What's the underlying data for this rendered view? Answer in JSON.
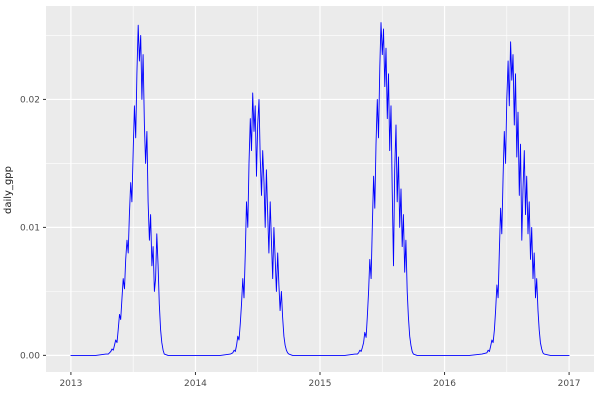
{
  "colors": {
    "figure_bg": "#FFFFFF",
    "panel_bg": "#EBEBEB",
    "grid": "#FFFFFF",
    "tick_mark": "#333333",
    "tick_text": "#4D4D4D",
    "axis_title": "#1A1A1A"
  },
  "chart_data": {
    "type": "line",
    "title": "",
    "xlabel": "",
    "ylabel": "daily_gpp",
    "xlim": [
      2012.8,
      2017.2
    ],
    "ylim": [
      -0.0013,
      0.0273
    ],
    "grid": "on",
    "legend": "none",
    "x_ticks": [
      {
        "value": 2013,
        "label": "2013"
      },
      {
        "value": 2014,
        "label": "2014"
      },
      {
        "value": 2015,
        "label": "2015"
      },
      {
        "value": 2016,
        "label": "2016"
      },
      {
        "value": 2017,
        "label": "2017"
      }
    ],
    "y_ticks": [
      {
        "value": 0.0,
        "label": "0.00"
      },
      {
        "value": 0.01,
        "label": "0.01"
      },
      {
        "value": 0.02,
        "label": "0.02"
      }
    ],
    "x_minor": [
      2013.5,
      2014.5,
      2015.5,
      2016.5
    ],
    "y_minor": [
      0.005,
      0.015,
      0.025
    ],
    "series": [
      {
        "name": "daily_gpp",
        "color": "#0000FF",
        "points": [
          [
            2013.0,
            0
          ],
          [
            2013.1,
            0
          ],
          [
            2013.2,
            0
          ],
          [
            2013.28,
            0.0001
          ],
          [
            2013.3,
            0.0001
          ],
          [
            2013.31,
            0.0002
          ],
          [
            2013.32,
            0.0003
          ],
          [
            2013.33,
            0.0005
          ],
          [
            2013.34,
            0.0004
          ],
          [
            2013.35,
            0.0008
          ],
          [
            2013.36,
            0.0012
          ],
          [
            2013.37,
            0.001
          ],
          [
            2013.38,
            0.002
          ],
          [
            2013.39,
            0.0032
          ],
          [
            2013.4,
            0.0028
          ],
          [
            2013.41,
            0.0045
          ],
          [
            2013.42,
            0.006
          ],
          [
            2013.43,
            0.0052
          ],
          [
            2013.44,
            0.0075
          ],
          [
            2013.45,
            0.009
          ],
          [
            2013.46,
            0.008
          ],
          [
            2013.47,
            0.011
          ],
          [
            2013.48,
            0.0135
          ],
          [
            2013.49,
            0.012
          ],
          [
            2013.5,
            0.016
          ],
          [
            2013.51,
            0.0195
          ],
          [
            2013.52,
            0.017
          ],
          [
            2013.53,
            0.022
          ],
          [
            2013.54,
            0.0258
          ],
          [
            2013.55,
            0.023
          ],
          [
            2013.56,
            0.025
          ],
          [
            2013.57,
            0.02
          ],
          [
            2013.58,
            0.0235
          ],
          [
            2013.59,
            0.018
          ],
          [
            2013.6,
            0.015
          ],
          [
            2013.61,
            0.0175
          ],
          [
            2013.62,
            0.012
          ],
          [
            2013.63,
            0.009
          ],
          [
            2013.64,
            0.011
          ],
          [
            2013.65,
            0.007
          ],
          [
            2013.66,
            0.0085
          ],
          [
            2013.67,
            0.005
          ],
          [
            2013.68,
            0.006
          ],
          [
            2013.69,
            0.0095
          ],
          [
            2013.7,
            0.007
          ],
          [
            2013.71,
            0.004
          ],
          [
            2013.72,
            0.002
          ],
          [
            2013.73,
            0.001
          ],
          [
            2013.74,
            0.0004
          ],
          [
            2013.75,
            0.0001
          ],
          [
            2013.78,
            0
          ],
          [
            2013.85,
            0
          ],
          [
            2013.92,
            0
          ],
          [
            2013.99,
            0
          ],
          [
            2014.0,
            0
          ],
          [
            2014.1,
            0
          ],
          [
            2014.2,
            0
          ],
          [
            2014.28,
            0.0001
          ],
          [
            2014.3,
            0.0002
          ],
          [
            2014.31,
            0.0004
          ],
          [
            2014.32,
            0.0003
          ],
          [
            2014.33,
            0.0008
          ],
          [
            2014.34,
            0.0015
          ],
          [
            2014.35,
            0.0012
          ],
          [
            2014.36,
            0.0025
          ],
          [
            2014.37,
            0.004
          ],
          [
            2014.38,
            0.006
          ],
          [
            2014.39,
            0.0045
          ],
          [
            2014.4,
            0.008
          ],
          [
            2014.41,
            0.012
          ],
          [
            2014.42,
            0.01
          ],
          [
            2014.43,
            0.015
          ],
          [
            2014.44,
            0.0185
          ],
          [
            2014.45,
            0.016
          ],
          [
            2014.46,
            0.0205
          ],
          [
            2014.47,
            0.0175
          ],
          [
            2014.48,
            0.0195
          ],
          [
            2014.49,
            0.014
          ],
          [
            2014.5,
            0.018
          ],
          [
            2014.51,
            0.02
          ],
          [
            2014.52,
            0.0155
          ],
          [
            2014.53,
            0.0125
          ],
          [
            2014.54,
            0.016
          ],
          [
            2014.55,
            0.0135
          ],
          [
            2014.56,
            0.01
          ],
          [
            2014.57,
            0.0145
          ],
          [
            2014.58,
            0.011
          ],
          [
            2014.59,
            0.008
          ],
          [
            2014.6,
            0.012
          ],
          [
            2014.61,
            0.009
          ],
          [
            2014.62,
            0.006
          ],
          [
            2014.63,
            0.01
          ],
          [
            2014.64,
            0.0075
          ],
          [
            2014.65,
            0.005
          ],
          [
            2014.66,
            0.008
          ],
          [
            2014.67,
            0.0055
          ],
          [
            2014.68,
            0.0035
          ],
          [
            2014.69,
            0.005
          ],
          [
            2014.7,
            0.003
          ],
          [
            2014.71,
            0.0015
          ],
          [
            2014.72,
            0.0008
          ],
          [
            2014.73,
            0.0004
          ],
          [
            2014.74,
            0.0002
          ],
          [
            2014.75,
            0.0001
          ],
          [
            2014.78,
            0
          ],
          [
            2014.85,
            0
          ],
          [
            2014.92,
            0
          ],
          [
            2014.99,
            0
          ],
          [
            2015.0,
            0
          ],
          [
            2015.1,
            0
          ],
          [
            2015.2,
            0
          ],
          [
            2015.28,
            0.0001
          ],
          [
            2015.3,
            0.0001
          ],
          [
            2015.31,
            0.0002
          ],
          [
            2015.32,
            0.0004
          ],
          [
            2015.33,
            0.0003
          ],
          [
            2015.34,
            0.0006
          ],
          [
            2015.35,
            0.001
          ],
          [
            2015.36,
            0.0018
          ],
          [
            2015.37,
            0.0014
          ],
          [
            2015.38,
            0.003
          ],
          [
            2015.39,
            0.005
          ],
          [
            2015.4,
            0.0075
          ],
          [
            2015.41,
            0.006
          ],
          [
            2015.42,
            0.01
          ],
          [
            2015.43,
            0.014
          ],
          [
            2015.44,
            0.0115
          ],
          [
            2015.45,
            0.0165
          ],
          [
            2015.46,
            0.02
          ],
          [
            2015.47,
            0.017
          ],
          [
            2015.48,
            0.0225
          ],
          [
            2015.49,
            0.026
          ],
          [
            2015.5,
            0.0235
          ],
          [
            2015.51,
            0.0255
          ],
          [
            2015.52,
            0.021
          ],
          [
            2015.53,
            0.024
          ],
          [
            2015.54,
            0.0185
          ],
          [
            2015.55,
            0.022
          ],
          [
            2015.56,
            0.016
          ],
          [
            2015.57,
            0.0195
          ],
          [
            2015.58,
            0.013
          ],
          [
            2015.59,
            0.007
          ],
          [
            2015.6,
            0.0145
          ],
          [
            2015.61,
            0.018
          ],
          [
            2015.62,
            0.012
          ],
          [
            2015.63,
            0.0155
          ],
          [
            2015.64,
            0.01
          ],
          [
            2015.65,
            0.013
          ],
          [
            2015.66,
            0.0085
          ],
          [
            2015.67,
            0.011
          ],
          [
            2015.68,
            0.0065
          ],
          [
            2015.69,
            0.009
          ],
          [
            2015.7,
            0.005
          ],
          [
            2015.71,
            0.003
          ],
          [
            2015.72,
            0.0015
          ],
          [
            2015.73,
            0.0008
          ],
          [
            2015.74,
            0.0003
          ],
          [
            2015.75,
            0.0001
          ],
          [
            2015.78,
            0
          ],
          [
            2015.85,
            0
          ],
          [
            2015.92,
            0
          ],
          [
            2015.99,
            0
          ],
          [
            2016.0,
            0
          ],
          [
            2016.1,
            0
          ],
          [
            2016.2,
            0
          ],
          [
            2016.3,
            0.0001
          ],
          [
            2016.34,
            0.0002
          ],
          [
            2016.35,
            0.0004
          ],
          [
            2016.36,
            0.0003
          ],
          [
            2016.37,
            0.0007
          ],
          [
            2016.38,
            0.0012
          ],
          [
            2016.39,
            0.001
          ],
          [
            2016.4,
            0.002
          ],
          [
            2016.41,
            0.0035
          ],
          [
            2016.42,
            0.0055
          ],
          [
            2016.43,
            0.0045
          ],
          [
            2016.44,
            0.008
          ],
          [
            2016.45,
            0.0115
          ],
          [
            2016.46,
            0.0095
          ],
          [
            2016.47,
            0.014
          ],
          [
            2016.48,
            0.0175
          ],
          [
            2016.49,
            0.015
          ],
          [
            2016.5,
            0.02
          ],
          [
            2016.51,
            0.023
          ],
          [
            2016.52,
            0.0195
          ],
          [
            2016.53,
            0.0245
          ],
          [
            2016.54,
            0.0215
          ],
          [
            2016.55,
            0.0235
          ],
          [
            2016.56,
            0.018
          ],
          [
            2016.57,
            0.022
          ],
          [
            2016.58,
            0.0155
          ],
          [
            2016.59,
            0.019
          ],
          [
            2016.6,
            0.0125
          ],
          [
            2016.61,
            0.0165
          ],
          [
            2016.62,
            0.009
          ],
          [
            2016.63,
            0.013
          ],
          [
            2016.64,
            0.016
          ],
          [
            2016.65,
            0.011
          ],
          [
            2016.66,
            0.014
          ],
          [
            2016.67,
            0.0095
          ],
          [
            2016.68,
            0.012
          ],
          [
            2016.69,
            0.0075
          ],
          [
            2016.7,
            0.01
          ],
          [
            2016.71,
            0.006
          ],
          [
            2016.72,
            0.008
          ],
          [
            2016.73,
            0.0045
          ],
          [
            2016.74,
            0.006
          ],
          [
            2016.75,
            0.0035
          ],
          [
            2016.76,
            0.002
          ],
          [
            2016.77,
            0.001
          ],
          [
            2016.78,
            0.0005
          ],
          [
            2016.79,
            0.0002
          ],
          [
            2016.8,
            0.0001
          ],
          [
            2016.85,
            0
          ],
          [
            2016.92,
            0
          ],
          [
            2017.0,
            0
          ]
        ]
      }
    ]
  }
}
